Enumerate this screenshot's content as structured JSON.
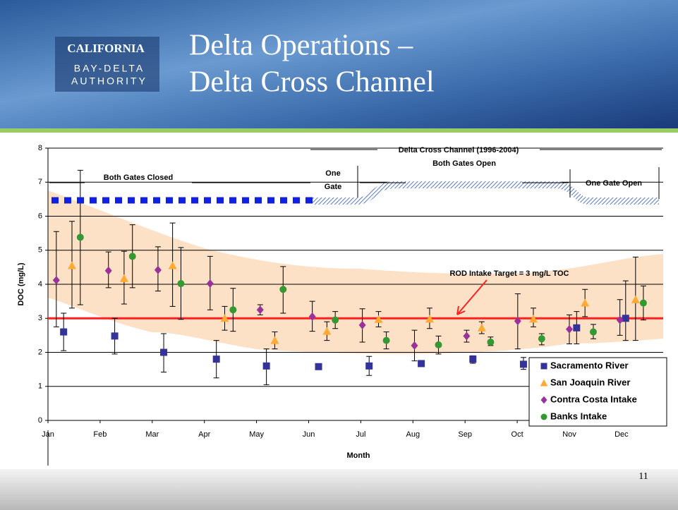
{
  "header": {
    "logo": [
      "CALIFORNIA",
      "BAY-DELTA",
      "AUTHORITY"
    ],
    "title": [
      "Delta Operations –",
      "Delta Cross Channel"
    ]
  },
  "page_number": "11",
  "chart_data": {
    "type": "scatter",
    "x_label": "Month",
    "y_label": "DOC (mg/L)",
    "xlim": [
      0,
      11.8
    ],
    "ylim": [
      0,
      8
    ],
    "xticks": [
      {
        "value": 0,
        "label": "Jan"
      },
      {
        "value": 1,
        "label": "Feb"
      },
      {
        "value": 2,
        "label": "Mar"
      },
      {
        "value": 3,
        "label": "Apr"
      },
      {
        "value": 4,
        "label": "May"
      },
      {
        "value": 5,
        "label": "Jun"
      },
      {
        "value": 6,
        "label": "Jul"
      },
      {
        "value": 7,
        "label": "Aug"
      },
      {
        "value": 8,
        "label": "Sep"
      },
      {
        "value": 9,
        "label": "Oct"
      },
      {
        "value": 10,
        "label": "Nov"
      },
      {
        "value": 11,
        "label": "Dec"
      }
    ],
    "yticks": [
      0,
      1,
      2,
      3,
      4,
      5,
      6,
      7,
      8
    ],
    "grid": true,
    "reference_line": {
      "value": 3,
      "color": "#ff2020",
      "label": "ROD Intake Target = 3 mg/L TOC"
    },
    "annotations": [
      "Both Gates Closed",
      "One",
      "Gate",
      "Delta Cross Channel (1996-2004)",
      "Both Gates Open",
      "One Gate Open"
    ],
    "series": [
      {
        "name": "Sacramento River",
        "color": "#33339a",
        "marker": "square",
        "x": [
          0.3,
          1.28,
          2.22,
          3.23,
          4.19,
          5.19,
          6.16,
          7.16,
          8.15,
          9.12,
          10.14,
          11.08
        ],
        "values": [
          2.6,
          2.48,
          2.0,
          1.8,
          1.6,
          1.58,
          1.6,
          1.67,
          1.8,
          1.65,
          2.72,
          3.0
        ],
        "low": [
          2.05,
          1.95,
          1.42,
          1.25,
          1.05,
          1.5,
          1.32,
          1.6,
          1.68,
          1.5,
          2.25,
          2.35
        ],
        "high": [
          3.15,
          3.0,
          2.55,
          2.35,
          2.1,
          1.65,
          1.88,
          1.75,
          1.9,
          1.85,
          3.2,
          4.1
        ]
      },
      {
        "name": "San Joaquin River",
        "color": "#ffaa33",
        "marker": "triangle",
        "x": [
          0.46,
          1.46,
          2.39,
          3.39,
          4.35,
          5.35,
          6.34,
          7.32,
          8.32,
          9.31,
          10.3,
          11.27
        ],
        "values": [
          4.55,
          4.17,
          4.55,
          3.0,
          2.35,
          2.62,
          2.97,
          2.98,
          2.72,
          2.98,
          3.45,
          3.55
        ],
        "low": [
          3.3,
          3.42,
          3.35,
          2.65,
          2.1,
          2.35,
          2.75,
          2.7,
          2.55,
          2.75,
          3.05,
          2.35
        ],
        "high": [
          5.85,
          4.97,
          5.8,
          3.35,
          2.6,
          2.9,
          3.2,
          3.3,
          2.9,
          3.3,
          3.85,
          4.8
        ]
      },
      {
        "name": "Contra Costa Intake",
        "color": "#993399",
        "marker": "diamond",
        "x": [
          0.16,
          1.16,
          2.11,
          3.11,
          4.07,
          5.07,
          6.03,
          7.03,
          8.03,
          9.01,
          10.0,
          10.97
        ],
        "values": [
          4.12,
          4.4,
          4.42,
          4.02,
          3.25,
          3.05,
          2.8,
          2.2,
          2.48,
          2.92,
          2.68,
          2.95
        ],
        "low": [
          2.75,
          3.9,
          3.8,
          3.25,
          3.1,
          2.62,
          2.3,
          1.75,
          2.3,
          2.1,
          2.25,
          2.5
        ],
        "high": [
          5.55,
          4.95,
          5.1,
          4.82,
          3.4,
          3.5,
          3.28,
          2.65,
          2.65,
          3.72,
          3.1,
          3.55
        ]
      },
      {
        "name": "Banks Intake",
        "color": "#339933",
        "marker": "circle",
        "x": [
          0.62,
          1.62,
          2.55,
          3.55,
          4.51,
          5.51,
          6.49,
          7.49,
          8.49,
          9.47,
          10.46,
          11.42
        ],
        "values": [
          5.38,
          4.82,
          4.02,
          3.25,
          3.85,
          2.95,
          2.35,
          2.22,
          2.3,
          2.4,
          2.6,
          3.45
        ],
        "low": [
          3.4,
          3.9,
          2.97,
          2.62,
          3.15,
          2.7,
          2.1,
          1.95,
          2.2,
          2.22,
          2.4,
          2.95
        ],
        "high": [
          7.35,
          5.75,
          5.08,
          3.88,
          4.52,
          3.2,
          2.6,
          2.48,
          2.45,
          2.55,
          2.82,
          3.95
        ]
      }
    ]
  }
}
